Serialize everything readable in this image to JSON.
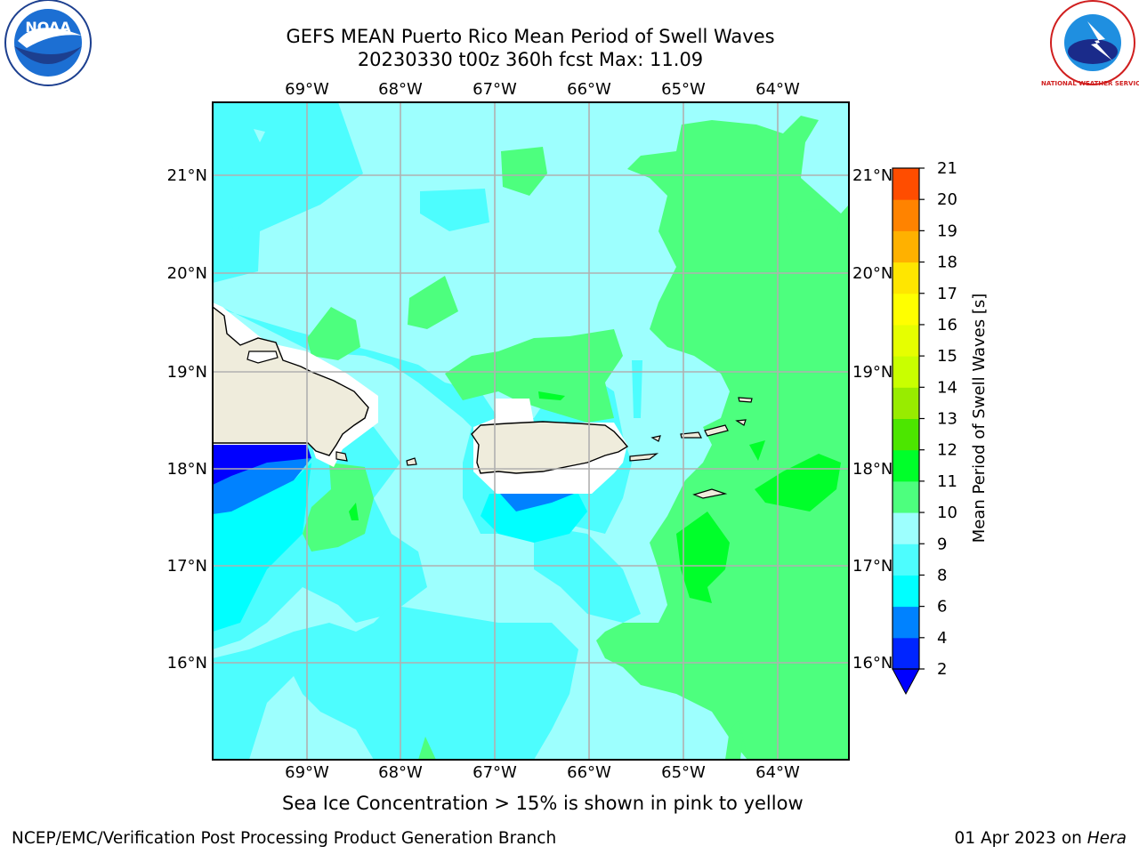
{
  "title": {
    "line1": "GEFS MEAN Puerto Rico Mean Period of Swell Waves",
    "line2": "20230330 t00z 360h fcst   Max: 11.09"
  },
  "map": {
    "lon_labels": [
      "69°W",
      "68°W",
      "67°W",
      "66°W",
      "65°W",
      "64°W"
    ],
    "lat_labels": [
      "21°N",
      "20°N",
      "19°N",
      "18°N",
      "17°N",
      "16°N"
    ],
    "land_color": "#efecdc",
    "ocean_base_color": "#9dfffe"
  },
  "colorbar": {
    "label": "Mean Period of Swell Waves [s]",
    "ticks": [
      "2",
      "4",
      "6",
      "8",
      "9",
      "10",
      "11",
      "12",
      "13",
      "14",
      "15",
      "16",
      "17",
      "18",
      "19",
      "20",
      "21"
    ],
    "colors": [
      "#0025ff",
      "#0082ff",
      "#00ffff",
      "#4dfdfe",
      "#9dfffe",
      "#4dff7e",
      "#00ff2a",
      "#4ce600",
      "#98ec00",
      "#c9ff00",
      "#e6ff00",
      "#ffff00",
      "#ffe600",
      "#ffb100",
      "#ff8300",
      "#ff4d00",
      "#ff1e00",
      "#ff0000"
    ],
    "under_color": "#0000ff"
  },
  "logos": {
    "noaa_text": "NOAA",
    "nws_text": "NATIONAL WEATHER SERVICE"
  },
  "caption": "Sea Ice Concentration > 15% is shown in pink to yellow",
  "footer": {
    "left": "NCEP/EMC/Verification Post Processing Product Generation Branch",
    "right_date": "01 Apr 2023 on ",
    "right_host": "Hera"
  }
}
